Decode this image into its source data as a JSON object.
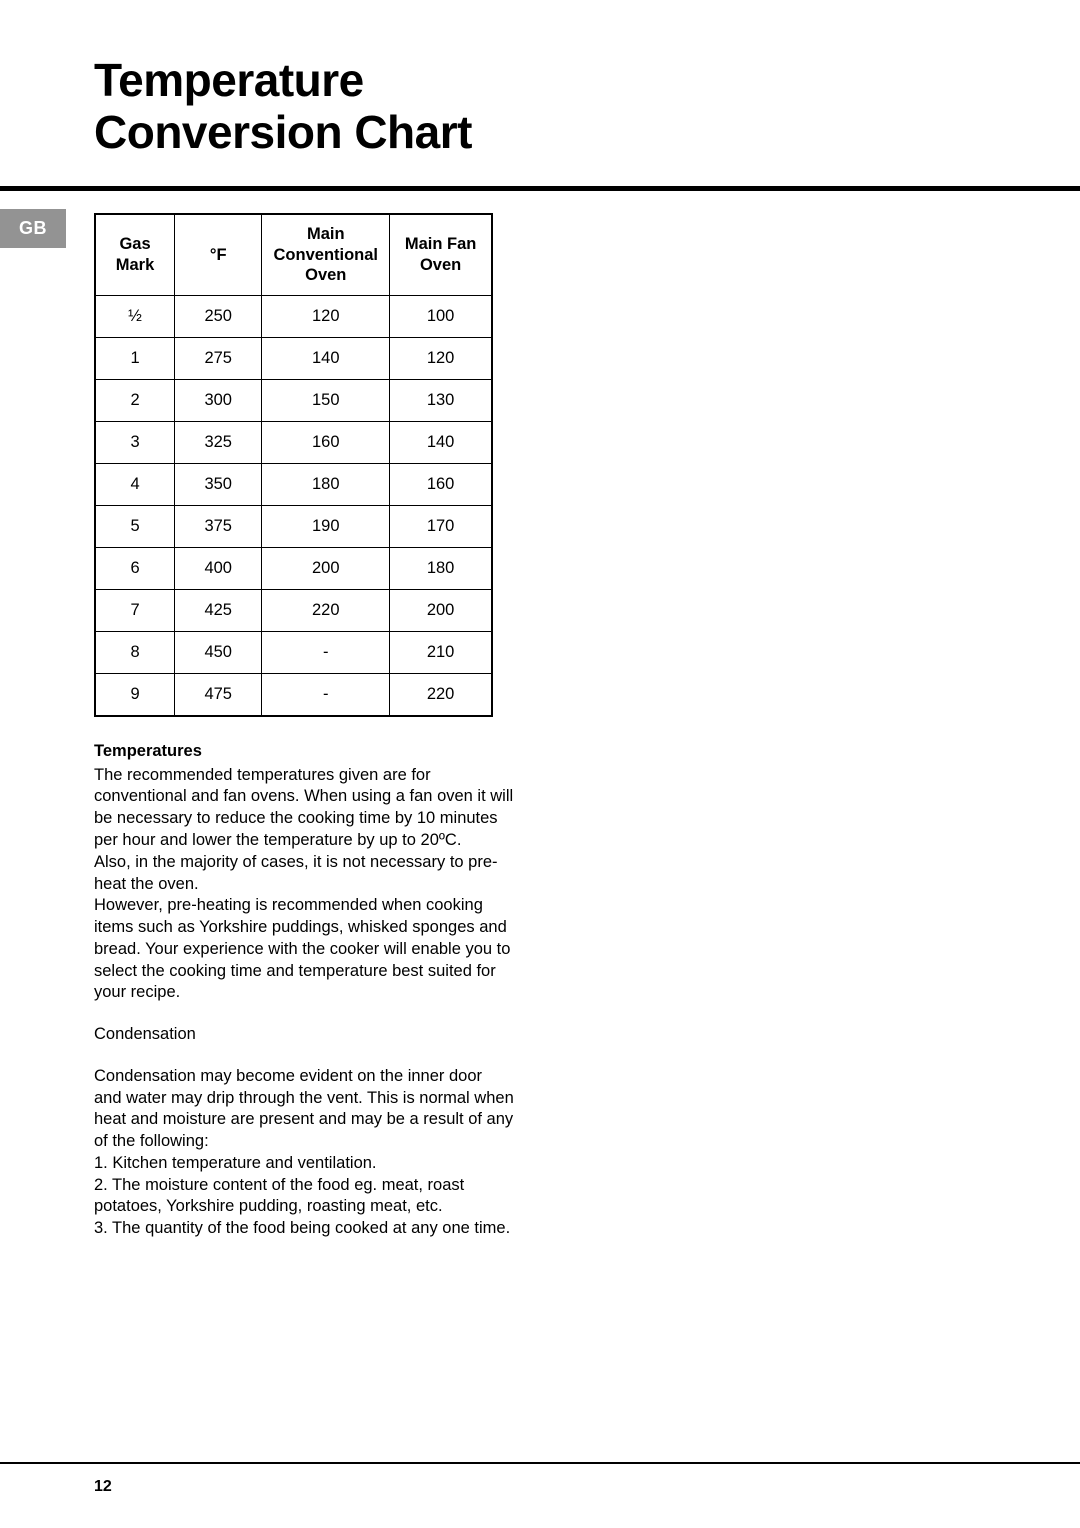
{
  "title": {
    "line1": "Temperature",
    "line2": "Conversion Chart"
  },
  "region_tab": "GB",
  "table": {
    "headers": [
      "Gas\nMark",
      "°F",
      "Main\nConventional\nOven",
      "Main Fan\nOven"
    ],
    "rows": [
      [
        "½",
        "250",
        "120",
        "100"
      ],
      [
        "1",
        "275",
        "140",
        "120"
      ],
      [
        "2",
        "300",
        "150",
        "130"
      ],
      [
        "3",
        "325",
        "160",
        "140"
      ],
      [
        "4",
        "350",
        "180",
        "160"
      ],
      [
        "5",
        "375",
        "190",
        "170"
      ],
      [
        "6",
        "400",
        "200",
        "180"
      ],
      [
        "7",
        "425",
        "220",
        "200"
      ],
      [
        "8",
        "450",
        "-",
        "210"
      ],
      [
        "9",
        "475",
        "-",
        "220"
      ]
    ]
  },
  "text": {
    "temperatures_head": "Temperatures",
    "temperatures_p1": "The recommended temperatures given are for conventional and fan ovens. When using a fan oven it will be necessary to reduce the cooking time by 10 minutes per hour and lower the temperature by up to 20ºC.",
    "temperatures_p2": "Also, in the majority of cases, it is not necessary to pre-heat the oven.",
    "temperatures_p3": "However, pre-heating is recommended when cooking items such as Yorkshire puddings, whisked sponges and bread. Your experience with the cooker will enable you to select the cooking time and temperature best suited for your recipe.",
    "condensation_head": "Condensation",
    "condensation_p1": "Condensation may become evident on the inner door and water may drip through the vent. This is normal when heat and moisture are present and may be a result of any of the following:",
    "condensation_l1": "1. Kitchen temperature and ventilation.",
    "condensation_l2": "2. The moisture content of the food eg. meat, roast potatoes, Yorkshire pudding, roasting meat, etc.",
    "condensation_l3": "3. The quantity of the food being cooked at any one time."
  },
  "page_number": "12",
  "colors": {
    "text": "#000000",
    "tab_bg": "#939393",
    "tab_text": "#ffffff",
    "rule": "#000000",
    "background": "#ffffff"
  }
}
